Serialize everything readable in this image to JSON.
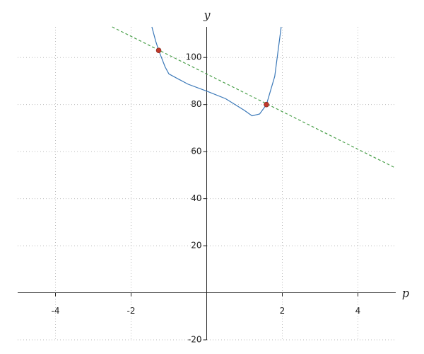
{
  "chart_data": {
    "type": "line",
    "x_label": "p",
    "y_label": "y",
    "xlim": [
      -5,
      5
    ],
    "ylim": [
      -20,
      113
    ],
    "xticks": [
      -4,
      -2,
      2,
      4
    ],
    "yticks": [
      -20,
      20,
      40,
      60,
      80,
      100
    ],
    "grid": true,
    "series": [
      {
        "color": "#3a78b8",
        "style": "solid",
        "x": [
          -1.45,
          -1.35,
          -1.27,
          -1.1,
          -1.0,
          -0.5,
          0,
          0.5,
          1.0,
          1.2,
          1.4,
          1.58,
          1.8,
          1.97
        ],
        "values": [
          113,
          107,
          103,
          96,
          93,
          88.7,
          85.7,
          82.5,
          77.5,
          75.2,
          76,
          80,
          92,
          113
        ]
      },
      {
        "color": "#4aa04a",
        "style": "dashed",
        "x": [
          -2.5,
          5
        ],
        "values": [
          113,
          53
        ]
      },
      {
        "color": "#c0392b",
        "style": "markers",
        "x": [
          -1.27,
          1.58
        ],
        "values": [
          103,
          80
        ]
      }
    ]
  }
}
